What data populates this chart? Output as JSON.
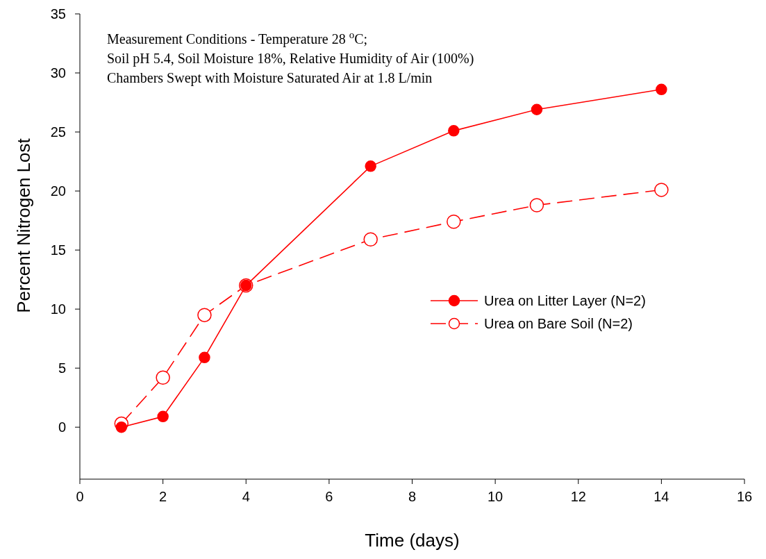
{
  "chart_data": {
    "type": "line",
    "xlabel": "Time (days)",
    "ylabel": "Percent Nitrogen Lost",
    "annotations": [
      "Measurement Conditions - Temperature 28 $^{o}$C;",
      "Soil pH 5.4, Soil Moisture 18%, Relative Humidity of Air (100%)",
      "Chambers Swept with Moisture Saturated Air at 1.8 L/min"
    ],
    "x": [
      1,
      2,
      3,
      4,
      7,
      9,
      11,
      14
    ],
    "series": [
      {
        "name": "Urea on Litter Layer (N=2)",
        "color": "#ff0000",
        "line_style": "solid",
        "values": [
          0,
          0.9,
          5.9,
          12,
          22.1,
          25.1,
          26.9,
          28.6
        ]
      },
      {
        "name": "Urea on Bare Soil (N=2)",
        "color": "#ff0000",
        "line_style": "dashed",
        "values": [
          0.3,
          4.2,
          9.5,
          12,
          15.9,
          17.4,
          18.8,
          20.1
        ]
      }
    ],
    "xlim": [
      0,
      16
    ],
    "xticks": [
      0,
      2,
      4,
      6,
      8,
      10,
      12,
      14,
      16
    ],
    "ylim": [
      -4.4,
      35
    ],
    "yticks": [
      0,
      5,
      10,
      15,
      20,
      25,
      30,
      35
    ],
    "marker": "circle",
    "legend": "center right",
    "grid": false
  }
}
